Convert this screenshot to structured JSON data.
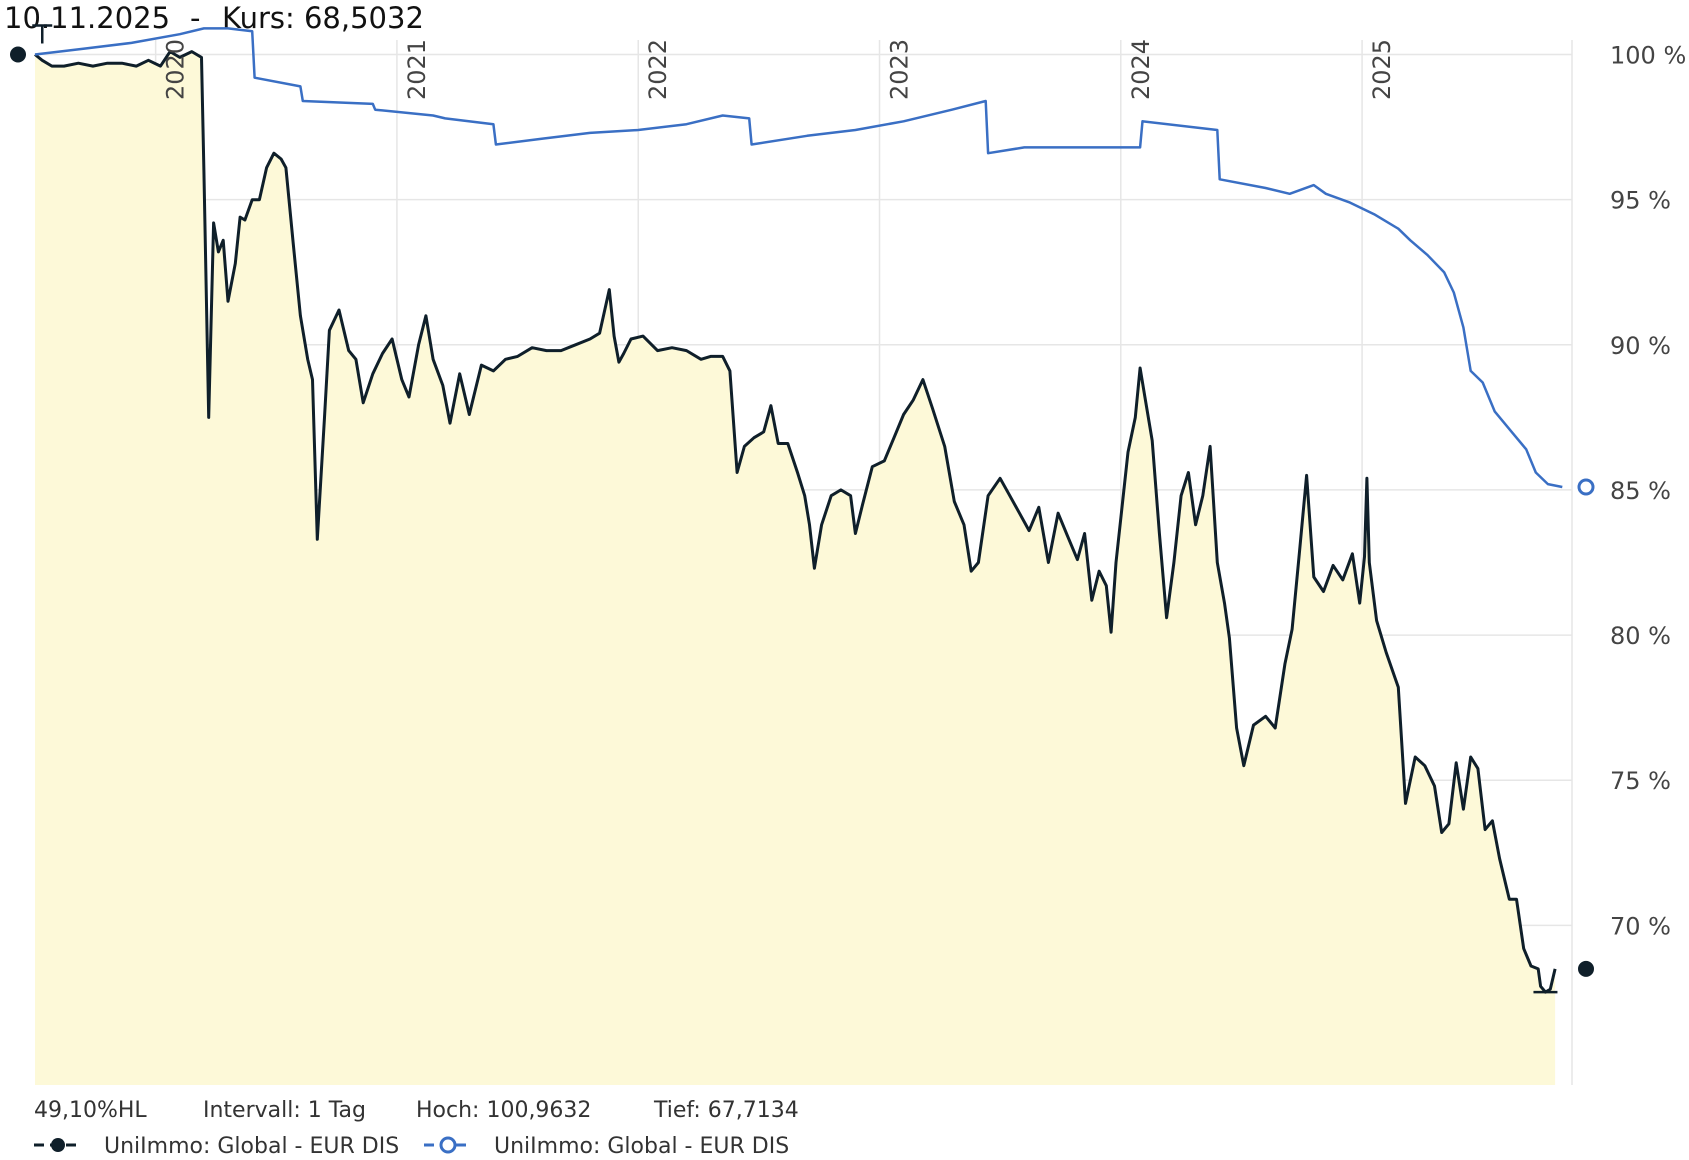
{
  "header": {
    "date": "10.11.2025",
    "separator": "-",
    "price_label": "Kurs: 68,5032"
  },
  "stats": {
    "hl": "49,10%HL",
    "interval": "Intervall: 1 Tag",
    "high": "Hoch: 100,9632",
    "low": "Tief: 67,7134"
  },
  "legend": [
    {
      "name": "UniImmo: Global - EUR DIS",
      "color": "#0f1f2a",
      "marker": "solid-dot"
    },
    {
      "name": "UniImmo: Global - EUR DIS",
      "color": "#3a6fc4",
      "marker": "hollow-dot"
    }
  ],
  "colors": {
    "price_line": "#0f1f2a",
    "area_fill": "#fdf9d8",
    "benchmark_line": "#3a6fc4",
    "grid": "#e6e6e6"
  },
  "chart_data": {
    "type": "line",
    "x_unit": "year",
    "xlim": [
      2019.5,
      2025.87
    ],
    "ylim": [
      64.5,
      100.5
    ],
    "yticks": [
      {
        "value": 100,
        "label": "100 %"
      },
      {
        "value": 95,
        "label": "95 %"
      },
      {
        "value": 90,
        "label": "90 %"
      },
      {
        "value": 85,
        "label": "85 %"
      },
      {
        "value": 80,
        "label": "80 %"
      },
      {
        "value": 75,
        "label": "75 %"
      },
      {
        "value": 70,
        "label": "70 %"
      }
    ],
    "xticks": [
      {
        "value": 2020,
        "label": "2020"
      },
      {
        "value": 2021,
        "label": "2021"
      },
      {
        "value": 2022,
        "label": "2022"
      },
      {
        "value": 2023,
        "label": "2023"
      },
      {
        "value": 2024,
        "label": "2024"
      },
      {
        "value": 2025,
        "label": "2025"
      }
    ],
    "grid": true,
    "legend_position": "bottom-left",
    "series": [
      {
        "fill": true,
        "color": "#0f1f2a",
        "points": [
          [
            2019.5,
            100.0
          ],
          [
            2019.53,
            99.8
          ],
          [
            2019.57,
            99.6
          ],
          [
            2019.62,
            99.6
          ],
          [
            2019.68,
            99.7
          ],
          [
            2019.74,
            99.6
          ],
          [
            2019.8,
            99.7
          ],
          [
            2019.86,
            99.7
          ],
          [
            2019.92,
            99.6
          ],
          [
            2019.97,
            99.8
          ],
          [
            2020.02,
            99.6
          ],
          [
            2020.06,
            100.1
          ],
          [
            2020.1,
            99.9
          ],
          [
            2020.15,
            100.1
          ],
          [
            2020.19,
            99.9
          ],
          [
            2020.2,
            96.0
          ],
          [
            2020.22,
            87.5
          ],
          [
            2020.24,
            94.2
          ],
          [
            2020.26,
            93.2
          ],
          [
            2020.28,
            93.6
          ],
          [
            2020.3,
            91.5
          ],
          [
            2020.33,
            92.8
          ],
          [
            2020.35,
            94.4
          ],
          [
            2020.37,
            94.3
          ],
          [
            2020.4,
            95.0
          ],
          [
            2020.43,
            95.0
          ],
          [
            2020.46,
            96.1
          ],
          [
            2020.49,
            96.6
          ],
          [
            2020.52,
            96.4
          ],
          [
            2020.54,
            96.1
          ],
          [
            2020.57,
            93.5
          ],
          [
            2020.6,
            91.0
          ],
          [
            2020.63,
            89.5
          ],
          [
            2020.65,
            88.8
          ],
          [
            2020.67,
            83.3
          ],
          [
            2020.7,
            87.5
          ],
          [
            2020.72,
            90.5
          ],
          [
            2020.76,
            91.2
          ],
          [
            2020.8,
            89.8
          ],
          [
            2020.83,
            89.5
          ],
          [
            2020.86,
            88.0
          ],
          [
            2020.9,
            89.0
          ],
          [
            2020.94,
            89.7
          ],
          [
            2020.98,
            90.2
          ],
          [
            2021.02,
            88.8
          ],
          [
            2021.05,
            88.2
          ],
          [
            2021.09,
            90.0
          ],
          [
            2021.12,
            91.0
          ],
          [
            2021.15,
            89.5
          ],
          [
            2021.19,
            88.6
          ],
          [
            2021.22,
            87.3
          ],
          [
            2021.26,
            89.0
          ],
          [
            2021.3,
            87.6
          ],
          [
            2021.35,
            89.3
          ],
          [
            2021.4,
            89.1
          ],
          [
            2021.45,
            89.5
          ],
          [
            2021.5,
            89.6
          ],
          [
            2021.56,
            89.9
          ],
          [
            2021.62,
            89.8
          ],
          [
            2021.68,
            89.8
          ],
          [
            2021.74,
            90.0
          ],
          [
            2021.8,
            90.2
          ],
          [
            2021.84,
            90.4
          ],
          [
            2021.88,
            91.9
          ],
          [
            2021.9,
            90.3
          ],
          [
            2021.92,
            89.4
          ],
          [
            2021.94,
            89.7
          ],
          [
            2021.97,
            90.2
          ],
          [
            2022.02,
            90.3
          ],
          [
            2022.08,
            89.8
          ],
          [
            2022.14,
            89.9
          ],
          [
            2022.2,
            89.8
          ],
          [
            2022.26,
            89.5
          ],
          [
            2022.3,
            89.6
          ],
          [
            2022.35,
            89.6
          ],
          [
            2022.38,
            89.1
          ],
          [
            2022.41,
            85.6
          ],
          [
            2022.44,
            86.5
          ],
          [
            2022.48,
            86.8
          ],
          [
            2022.52,
            87.0
          ],
          [
            2022.55,
            87.9
          ],
          [
            2022.58,
            86.6
          ],
          [
            2022.62,
            86.6
          ],
          [
            2022.66,
            85.6
          ],
          [
            2022.69,
            84.8
          ],
          [
            2022.71,
            83.8
          ],
          [
            2022.73,
            82.3
          ],
          [
            2022.76,
            83.8
          ],
          [
            2022.8,
            84.8
          ],
          [
            2022.84,
            85.0
          ],
          [
            2022.88,
            84.8
          ],
          [
            2022.9,
            83.5
          ],
          [
            2022.93,
            84.5
          ],
          [
            2022.97,
            85.8
          ],
          [
            2023.02,
            86.0
          ],
          [
            2023.06,
            86.8
          ],
          [
            2023.1,
            87.6
          ],
          [
            2023.14,
            88.1
          ],
          [
            2023.18,
            88.8
          ],
          [
            2023.22,
            87.8
          ],
          [
            2023.27,
            86.5
          ],
          [
            2023.31,
            84.6
          ],
          [
            2023.35,
            83.8
          ],
          [
            2023.38,
            82.2
          ],
          [
            2023.41,
            82.5
          ],
          [
            2023.45,
            84.8
          ],
          [
            2023.5,
            85.4
          ],
          [
            2023.54,
            84.8
          ],
          [
            2023.58,
            84.2
          ],
          [
            2023.62,
            83.6
          ],
          [
            2023.66,
            84.4
          ],
          [
            2023.7,
            82.5
          ],
          [
            2023.74,
            84.2
          ],
          [
            2023.78,
            83.4
          ],
          [
            2023.82,
            82.6
          ],
          [
            2023.85,
            83.5
          ],
          [
            2023.88,
            81.2
          ],
          [
            2023.91,
            82.2
          ],
          [
            2023.94,
            81.7
          ],
          [
            2023.96,
            80.1
          ],
          [
            2023.98,
            82.5
          ],
          [
            2024.03,
            86.3
          ],
          [
            2024.06,
            87.5
          ],
          [
            2024.08,
            89.2
          ],
          [
            2024.1,
            88.2
          ],
          [
            2024.13,
            86.7
          ],
          [
            2024.16,
            83.5
          ],
          [
            2024.19,
            80.6
          ],
          [
            2024.22,
            82.5
          ],
          [
            2024.25,
            84.8
          ],
          [
            2024.28,
            85.6
          ],
          [
            2024.31,
            83.8
          ],
          [
            2024.34,
            84.8
          ],
          [
            2024.37,
            86.5
          ],
          [
            2024.4,
            82.5
          ],
          [
            2024.43,
            81.1
          ],
          [
            2024.45,
            79.9
          ],
          [
            2024.48,
            76.8
          ],
          [
            2024.51,
            75.5
          ],
          [
            2024.55,
            76.9
          ],
          [
            2024.6,
            77.2
          ],
          [
            2024.64,
            76.8
          ],
          [
            2024.68,
            79.0
          ],
          [
            2024.71,
            80.2
          ],
          [
            2024.74,
            82.8
          ],
          [
            2024.77,
            85.5
          ],
          [
            2024.8,
            82.0
          ],
          [
            2024.84,
            81.5
          ],
          [
            2024.88,
            82.4
          ],
          [
            2024.92,
            81.9
          ],
          [
            2024.96,
            82.8
          ],
          [
            2024.99,
            81.1
          ],
          [
            2025.01,
            82.7
          ],
          [
            2025.02,
            85.4
          ],
          [
            2025.03,
            82.5
          ],
          [
            2025.06,
            80.5
          ],
          [
            2025.1,
            79.4
          ],
          [
            2025.15,
            78.2
          ],
          [
            2025.18,
            74.2
          ],
          [
            2025.22,
            75.8
          ],
          [
            2025.26,
            75.5
          ],
          [
            2025.3,
            74.8
          ],
          [
            2025.33,
            73.2
          ],
          [
            2025.36,
            73.5
          ],
          [
            2025.39,
            75.6
          ],
          [
            2025.42,
            74.0
          ],
          [
            2025.45,
            75.8
          ],
          [
            2025.48,
            75.4
          ],
          [
            2025.51,
            73.3
          ],
          [
            2025.54,
            73.6
          ],
          [
            2025.57,
            72.3
          ],
          [
            2025.61,
            70.9
          ],
          [
            2025.64,
            70.9
          ],
          [
            2025.67,
            69.2
          ],
          [
            2025.7,
            68.6
          ],
          [
            2025.73,
            68.5
          ],
          [
            2025.74,
            67.9
          ],
          [
            2025.76,
            67.7
          ],
          [
            2025.78,
            67.8
          ],
          [
            2025.8,
            68.5
          ]
        ]
      },
      {
        "fill": false,
        "color": "#3a6fc4",
        "points": [
          [
            2019.5,
            100.0
          ],
          [
            2019.7,
            100.2
          ],
          [
            2019.9,
            100.4
          ],
          [
            2020.1,
            100.7
          ],
          [
            2020.2,
            100.9
          ],
          [
            2020.3,
            100.9
          ],
          [
            2020.4,
            100.8
          ],
          [
            2020.41,
            99.2
          ],
          [
            2020.6,
            98.9
          ],
          [
            2020.61,
            98.4
          ],
          [
            2020.9,
            98.3
          ],
          [
            2020.91,
            98.1
          ],
          [
            2021.15,
            97.9
          ],
          [
            2021.2,
            97.8
          ],
          [
            2021.4,
            97.6
          ],
          [
            2021.41,
            96.9
          ],
          [
            2021.6,
            97.1
          ],
          [
            2021.8,
            97.3
          ],
          [
            2022.0,
            97.4
          ],
          [
            2022.2,
            97.6
          ],
          [
            2022.35,
            97.9
          ],
          [
            2022.46,
            97.8
          ],
          [
            2022.47,
            96.9
          ],
          [
            2022.7,
            97.2
          ],
          [
            2022.9,
            97.4
          ],
          [
            2023.1,
            97.7
          ],
          [
            2023.3,
            98.1
          ],
          [
            2023.44,
            98.4
          ],
          [
            2023.45,
            96.6
          ],
          [
            2023.6,
            96.8
          ],
          [
            2023.8,
            96.8
          ],
          [
            2024.0,
            96.8
          ],
          [
            2024.08,
            96.8
          ],
          [
            2024.09,
            97.7
          ],
          [
            2024.4,
            97.4
          ],
          [
            2024.41,
            95.7
          ],
          [
            2024.6,
            95.4
          ],
          [
            2024.7,
            95.2
          ],
          [
            2024.8,
            95.5
          ],
          [
            2024.85,
            95.2
          ],
          [
            2024.95,
            94.9
          ],
          [
            2025.05,
            94.5
          ],
          [
            2025.15,
            94.0
          ],
          [
            2025.2,
            93.6
          ],
          [
            2025.27,
            93.1
          ],
          [
            2025.34,
            92.5
          ],
          [
            2025.38,
            91.8
          ],
          [
            2025.42,
            90.6
          ],
          [
            2025.45,
            89.1
          ],
          [
            2025.5,
            88.7
          ],
          [
            2025.55,
            87.7
          ],
          [
            2025.62,
            87.0
          ],
          [
            2025.68,
            86.4
          ],
          [
            2025.72,
            85.6
          ],
          [
            2025.77,
            85.2
          ],
          [
            2025.83,
            85.1
          ]
        ]
      }
    ]
  }
}
